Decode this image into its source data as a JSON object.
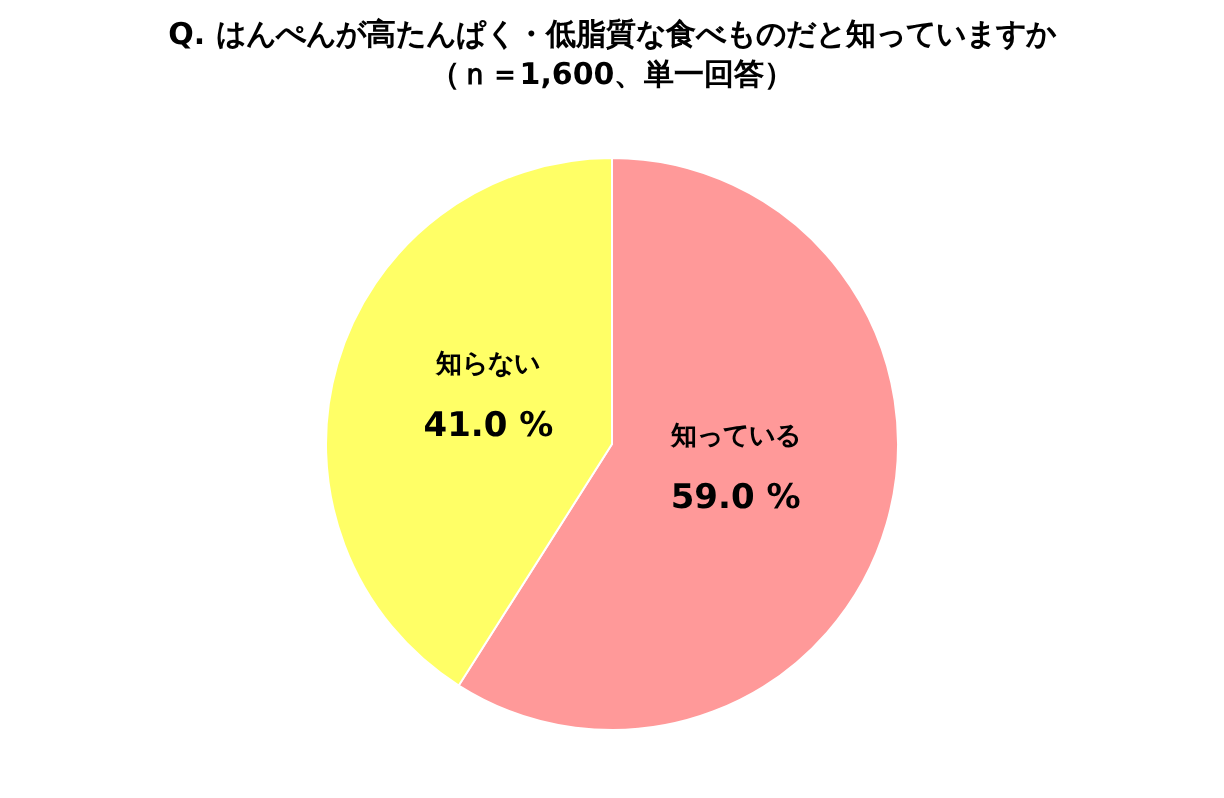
{
  "chart_data": {
    "type": "pie",
    "title": "Q. はんぺんが高たんぱく・低脂質な食べものだと知っていますか",
    "subtitle": "（ｎ＝1,600、単一回答）",
    "categories": [
      "知っている",
      "知らない"
    ],
    "values": [
      59.0,
      41.0
    ],
    "colors": [
      "#ff9999",
      "#ffff66"
    ],
    "value_labels": [
      "59.0 %",
      "41.0 %"
    ]
  }
}
